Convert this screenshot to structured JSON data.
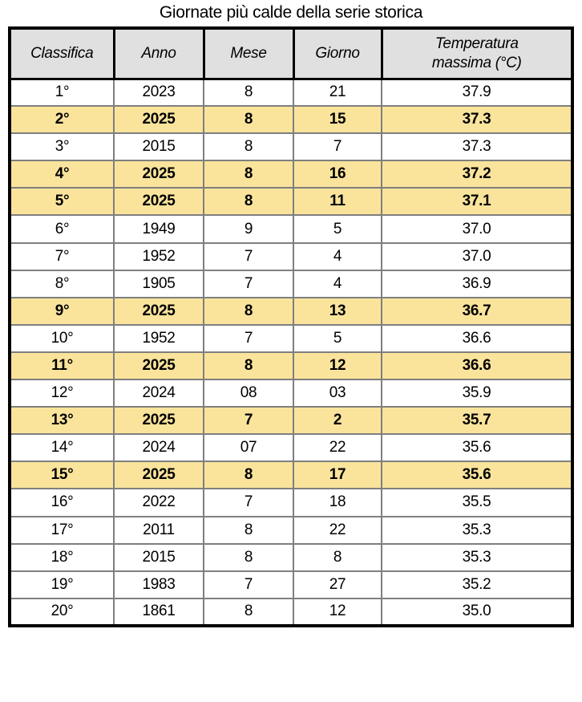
{
  "title": "Giornate più calde della serie storica",
  "colors": {
    "highlight_row": "#FAE49C",
    "header_bg": "#E0E0E0",
    "grid_line": "#7F7F7F",
    "outer_border": "#000000",
    "text_color": "#000000"
  },
  "chart_data": {
    "type": "table",
    "title": "Giornate più calde della serie storica",
    "columns": [
      "Classifica",
      "Anno",
      "Mese",
      "Giorno",
      "Temperatura\nmassima (°C)"
    ],
    "highlight_meaning": "rows with Anno 2025 are shown bold on yellow background",
    "highlighted_ranks": [
      "2°",
      "4°",
      "5°",
      "9°",
      "11°",
      "13°",
      "15°"
    ],
    "rows": [
      {
        "classifica": "1°",
        "anno": "2023",
        "mese": "8",
        "giorno": "21",
        "tmax": "37.9",
        "highlight": false
      },
      {
        "classifica": "2°",
        "anno": "2025",
        "mese": "8",
        "giorno": "15",
        "tmax": "37.3",
        "highlight": true
      },
      {
        "classifica": "3°",
        "anno": "2015",
        "mese": "8",
        "giorno": "7",
        "tmax": "37.3",
        "highlight": false
      },
      {
        "classifica": "4°",
        "anno": "2025",
        "mese": "8",
        "giorno": "16",
        "tmax": "37.2",
        "highlight": true
      },
      {
        "classifica": "5°",
        "anno": "2025",
        "mese": "8",
        "giorno": "11",
        "tmax": "37.1",
        "highlight": true
      },
      {
        "classifica": "6°",
        "anno": "1949",
        "mese": "9",
        "giorno": "5",
        "tmax": "37.0",
        "highlight": false
      },
      {
        "classifica": "7°",
        "anno": "1952",
        "mese": "7",
        "giorno": "4",
        "tmax": "37.0",
        "highlight": false
      },
      {
        "classifica": "8°",
        "anno": "1905",
        "mese": "7",
        "giorno": "4",
        "tmax": "36.9",
        "highlight": false
      },
      {
        "classifica": "9°",
        "anno": "2025",
        "mese": "8",
        "giorno": "13",
        "tmax": "36.7",
        "highlight": true
      },
      {
        "classifica": "10°",
        "anno": "1952",
        "mese": "7",
        "giorno": "5",
        "tmax": "36.6",
        "highlight": false
      },
      {
        "classifica": "11°",
        "anno": "2025",
        "mese": "8",
        "giorno": "12",
        "tmax": "36.6",
        "highlight": true
      },
      {
        "classifica": "12°",
        "anno": "2024",
        "mese": "08",
        "giorno": "03",
        "tmax": "35.9",
        "highlight": false
      },
      {
        "classifica": "13°",
        "anno": "2025",
        "mese": "7",
        "giorno": "2",
        "tmax": "35.7",
        "highlight": true
      },
      {
        "classifica": "14°",
        "anno": "2024",
        "mese": "07",
        "giorno": "22",
        "tmax": "35.6",
        "highlight": false
      },
      {
        "classifica": "15°",
        "anno": "2025",
        "mese": "8",
        "giorno": "17",
        "tmax": "35.6",
        "highlight": true
      },
      {
        "classifica": "16°",
        "anno": "2022",
        "mese": "7",
        "giorno": "18",
        "tmax": "35.5",
        "highlight": false
      },
      {
        "classifica": "17°",
        "anno": "2011",
        "mese": "8",
        "giorno": "22",
        "tmax": "35.3",
        "highlight": false
      },
      {
        "classifica": "18°",
        "anno": "2015",
        "mese": "8",
        "giorno": "8",
        "tmax": "35.3",
        "highlight": false
      },
      {
        "classifica": "19°",
        "anno": "1983",
        "mese": "7",
        "giorno": "27",
        "tmax": "35.2",
        "highlight": false
      },
      {
        "classifica": "20°",
        "anno": "1861",
        "mese": "8",
        "giorno": "12",
        "tmax": "35.0",
        "highlight": false
      }
    ]
  }
}
